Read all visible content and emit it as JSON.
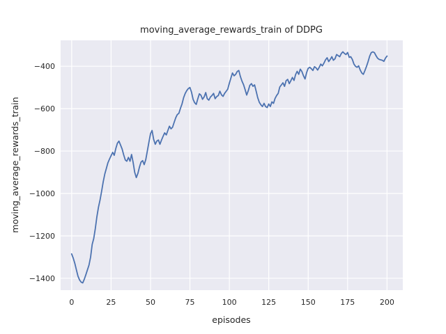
{
  "figure": {
    "background": "#ffffff"
  },
  "chart_data": {
    "type": "line",
    "title": "moving_average_rewards_train of DDPG",
    "xlabel": "episodes",
    "ylabel": "moving_average_rewards_train",
    "x_ticks": [
      0,
      25,
      50,
      75,
      100,
      125,
      150,
      175,
      200
    ],
    "y_ticks": [
      -400,
      -600,
      -800,
      -1000,
      -1200,
      -1400
    ],
    "xlim": [
      -7,
      210
    ],
    "ylim": [
      -1456,
      -278
    ],
    "grid": true,
    "legend": false,
    "style": {
      "line_color": "#4c72b0",
      "plot_bg": "#eaeaf2",
      "grid_color": "#ffffff",
      "text_color": "#262626",
      "line_width": 1.8
    },
    "series": [
      {
        "name": "moving_average_rewards_train",
        "x": [
          0,
          1,
          2,
          3,
          4,
          5,
          6,
          7,
          8,
          9,
          10,
          11,
          12,
          13,
          14,
          15,
          16,
          17,
          18,
          19,
          20,
          21,
          22,
          23,
          24,
          25,
          26,
          27,
          28,
          29,
          30,
          31,
          32,
          33,
          34,
          35,
          36,
          37,
          38,
          39,
          40,
          41,
          42,
          43,
          44,
          45,
          46,
          47,
          48,
          49,
          50,
          51,
          52,
          53,
          54,
          55,
          56,
          57,
          58,
          59,
          60,
          61,
          62,
          63,
          64,
          65,
          66,
          67,
          68,
          69,
          70,
          71,
          72,
          73,
          74,
          75,
          76,
          77,
          78,
          79,
          80,
          81,
          82,
          83,
          84,
          85,
          86,
          87,
          88,
          89,
          90,
          91,
          92,
          93,
          94,
          95,
          96,
          97,
          98,
          99,
          100,
          101,
          102,
          103,
          104,
          105,
          106,
          107,
          108,
          109,
          110,
          111,
          112,
          113,
          114,
          115,
          116,
          117,
          118,
          119,
          120,
          121,
          122,
          123,
          124,
          125,
          126,
          127,
          128,
          129,
          130,
          131,
          132,
          133,
          134,
          135,
          136,
          137,
          138,
          139,
          140,
          141,
          142,
          143,
          144,
          145,
          146,
          147,
          148,
          149,
          150,
          151,
          152,
          153,
          154,
          155,
          156,
          157,
          158,
          159,
          160,
          161,
          162,
          163,
          164,
          165,
          166,
          167,
          168,
          169,
          170,
          171,
          172,
          173,
          174,
          175,
          176,
          177,
          178,
          179,
          180,
          181,
          182,
          183,
          184,
          185,
          186,
          187,
          188,
          189,
          190,
          191,
          192,
          193,
          194,
          195,
          196,
          197,
          198,
          199,
          200
        ],
        "y": [
          -1285,
          -1305,
          -1330,
          -1360,
          -1390,
          -1408,
          -1418,
          -1422,
          -1405,
          -1383,
          -1360,
          -1338,
          -1300,
          -1240,
          -1213,
          -1165,
          -1110,
          -1065,
          -1030,
          -990,
          -945,
          -908,
          -882,
          -855,
          -838,
          -822,
          -806,
          -820,
          -788,
          -763,
          -753,
          -772,
          -790,
          -818,
          -842,
          -848,
          -830,
          -848,
          -816,
          -855,
          -900,
          -925,
          -905,
          -876,
          -852,
          -845,
          -864,
          -840,
          -800,
          -758,
          -718,
          -703,
          -745,
          -768,
          -753,
          -748,
          -768,
          -748,
          -730,
          -714,
          -724,
          -703,
          -683,
          -695,
          -688,
          -665,
          -643,
          -628,
          -622,
          -598,
          -578,
          -548,
          -528,
          -515,
          -505,
          -500,
          -522,
          -556,
          -572,
          -580,
          -553,
          -530,
          -537,
          -556,
          -545,
          -524,
          -553,
          -560,
          -545,
          -538,
          -528,
          -553,
          -543,
          -538,
          -518,
          -535,
          -542,
          -528,
          -518,
          -508,
          -480,
          -455,
          -432,
          -445,
          -438,
          -425,
          -420,
          -448,
          -470,
          -487,
          -510,
          -536,
          -515,
          -490,
          -482,
          -495,
          -488,
          -518,
          -548,
          -570,
          -582,
          -590,
          -575,
          -590,
          -595,
          -578,
          -590,
          -568,
          -575,
          -552,
          -538,
          -528,
          -498,
          -488,
          -478,
          -495,
          -468,
          -462,
          -482,
          -468,
          -453,
          -467,
          -440,
          -424,
          -438,
          -414,
          -425,
          -445,
          -460,
          -430,
          -410,
          -405,
          -412,
          -420,
          -402,
          -408,
          -418,
          -405,
          -390,
          -398,
          -385,
          -370,
          -360,
          -378,
          -368,
          -355,
          -372,
          -365,
          -345,
          -350,
          -355,
          -340,
          -332,
          -340,
          -345,
          -335,
          -358,
          -355,
          -368,
          -390,
          -400,
          -405,
          -398,
          -418,
          -432,
          -438,
          -420,
          -400,
          -378,
          -352,
          -336,
          -332,
          -336,
          -350,
          -362,
          -368,
          -370,
          -372,
          -377,
          -362,
          -352
        ]
      }
    ]
  }
}
